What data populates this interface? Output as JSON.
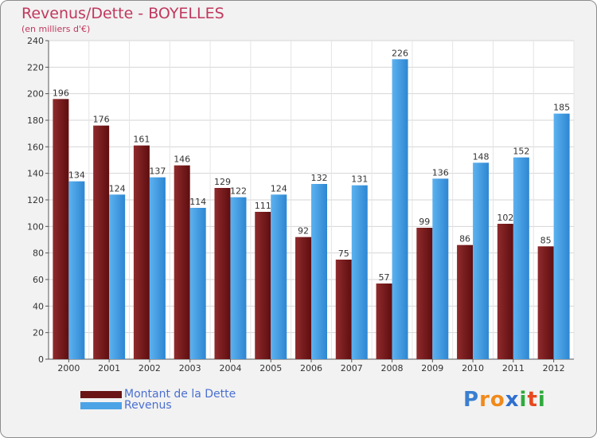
{
  "chart_data": {
    "type": "bar",
    "title": "Revenus/Dette - BOYELLES",
    "subtitle": "(en milliers d'€)",
    "categories": [
      "2000",
      "2001",
      "2002",
      "2003",
      "2004",
      "2005",
      "2006",
      "2007",
      "2008",
      "2009",
      "2010",
      "2011",
      "2012"
    ],
    "series": [
      {
        "name": "Montant de la Dette",
        "values": [
          196,
          176,
          161,
          146,
          129,
          111,
          92,
          75,
          57,
          99,
          86,
          102,
          85
        ],
        "color": "#7a1a1c"
      },
      {
        "name": "Revenus",
        "values": [
          134,
          124,
          137,
          114,
          122,
          124,
          132,
          131,
          226,
          136,
          148,
          152,
          185
        ],
        "color": "#4ca3e6"
      }
    ],
    "ylim": [
      0,
      240
    ],
    "yticks": [
      0,
      20,
      40,
      60,
      80,
      100,
      120,
      140,
      160,
      180,
      200,
      220,
      240
    ],
    "grid": true,
    "legend": "bottom-left"
  },
  "logo": {
    "text": "Proxiti",
    "letters": [
      "P",
      "r",
      "o",
      "x",
      "i",
      "t",
      "i"
    ],
    "colors": [
      "#3a7fd0",
      "#f08a1c",
      "#f08a1c",
      "#2f6fd0",
      "#2faa3c",
      "#e8481e",
      "#2faa3c"
    ]
  }
}
